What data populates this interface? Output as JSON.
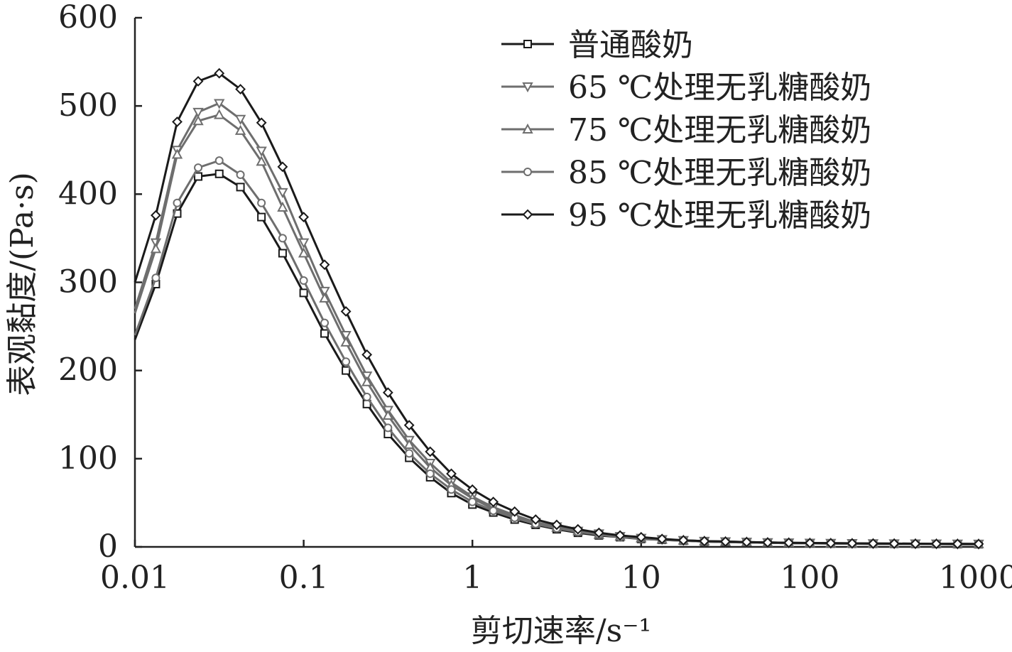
{
  "chart_data": {
    "type": "line",
    "title": "",
    "xlabel": "剪切速率/s⁻¹",
    "ylabel": "表观黏度/(Pa·s)",
    "xscale": "log",
    "xlim": [
      0.01,
      1000
    ],
    "ylim": [
      0,
      600
    ],
    "xticks": [
      "0.01",
      "0.1",
      "1",
      "10",
      "100",
      "1000"
    ],
    "yticks": [
      "0",
      "100",
      "200",
      "300",
      "400",
      "500",
      "600"
    ],
    "grid": false,
    "legend_position": "top-right",
    "x": [
      0.01,
      0.0133,
      0.0178,
      0.0237,
      0.0316,
      0.0422,
      0.0562,
      0.075,
      0.1,
      0.133,
      0.178,
      0.237,
      0.316,
      0.422,
      0.562,
      0.75,
      1,
      1.33,
      1.78,
      2.37,
      3.16,
      4.22,
      5.62,
      7.5,
      10,
      13.3,
      17.8,
      23.7,
      31.6,
      42.2,
      56.2,
      75,
      100,
      133,
      178,
      237,
      316,
      422,
      562,
      750,
      1000
    ],
    "series": [
      {
        "name": "普通酸奶",
        "marker": "square",
        "color": "#1a1a1a",
        "values": [
          235,
          298,
          378,
          420,
          423,
          408,
          374,
          333,
          288,
          242,
          200,
          162,
          128,
          101,
          79,
          61,
          48,
          39,
          31,
          25,
          20,
          16,
          13,
          11,
          9,
          8,
          7,
          6,
          5.5,
          5,
          4.6,
          4.3,
          4,
          3.8,
          3.6,
          3.5,
          3.4,
          3.3,
          3.2,
          3.1,
          3
        ]
      },
      {
        "name": "65 ℃处理无乳糖酸奶",
        "marker": "triangle-down",
        "color": "#6e6e6e",
        "values": [
          270,
          345,
          450,
          493,
          503,
          485,
          449,
          402,
          345,
          290,
          240,
          194,
          155,
          121,
          95,
          73,
          57,
          45,
          36,
          28,
          23,
          18,
          15,
          12,
          10,
          8.5,
          7.5,
          6.5,
          6,
          5.5,
          5,
          4.7,
          4.4,
          4.2,
          4,
          3.8,
          3.7,
          3.6,
          3.5,
          3.4,
          3.3
        ]
      },
      {
        "name": "75 ℃处理无乳糖酸奶",
        "marker": "triangle-up",
        "color": "#6e6e6e",
        "values": [
          265,
          338,
          445,
          483,
          490,
          472,
          437,
          385,
          333,
          282,
          232,
          187,
          149,
          116,
          90,
          70,
          55,
          43,
          34,
          27,
          22,
          18,
          14,
          12,
          10,
          8.5,
          7.5,
          6.5,
          6,
          5.5,
          5,
          4.7,
          4.4,
          4.2,
          4,
          3.8,
          3.7,
          3.6,
          3.5,
          3.4,
          3.3
        ]
      },
      {
        "name": "85 ℃处理无乳糖酸奶",
        "marker": "circle",
        "color": "#6e6e6e",
        "values": [
          240,
          305,
          390,
          430,
          438,
          422,
          390,
          350,
          302,
          254,
          210,
          170,
          135,
          106,
          83,
          65,
          51,
          41,
          33,
          26,
          21,
          17,
          14,
          11,
          9.5,
          8,
          7,
          6,
          5.5,
          5,
          4.6,
          4.3,
          4,
          3.8,
          3.6,
          3.5,
          3.4,
          3.3,
          3.2,
          3.1,
          3
        ]
      },
      {
        "name": "95 ℃处理无乳糖酸奶",
        "marker": "diamond",
        "color": "#1a1a1a",
        "values": [
          300,
          376,
          482,
          528,
          537,
          519,
          481,
          431,
          374,
          320,
          267,
          218,
          175,
          138,
          108,
          83,
          65,
          51,
          40,
          31,
          25,
          20,
          16,
          13,
          11,
          9,
          7.5,
          6.5,
          6,
          5.5,
          5,
          4.7,
          4.4,
          4.2,
          4,
          3.8,
          3.7,
          3.6,
          3.5,
          3.4,
          3.3
        ]
      }
    ]
  }
}
